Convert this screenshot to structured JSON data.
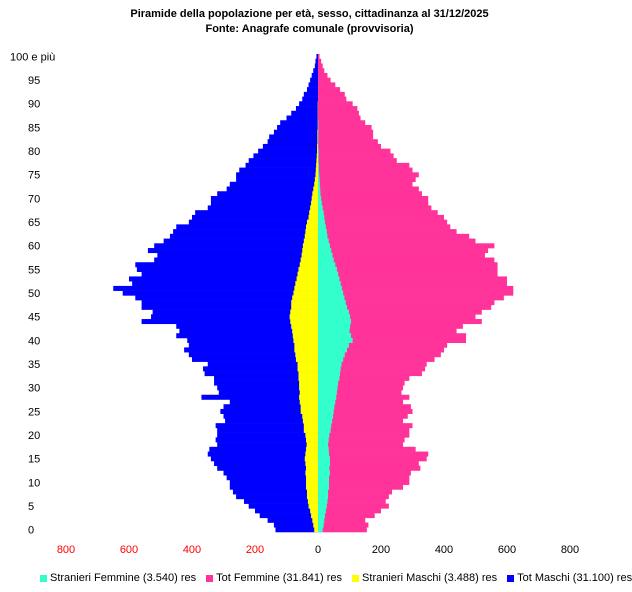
{
  "title": "Piramide della popolazione per età, sesso, cittadinanza al 31/12/2025",
  "subtitle": "Fonte: Anagrafe comunale (provvisoria)",
  "colors": {
    "tot_maschi": "#0000ff",
    "stranieri_maschi": "#ffff00",
    "tot_femmine": "#ff3399",
    "stranieri_femmine": "#33ffcc",
    "male_ticks": "#ff0000"
  },
  "legend": [
    {
      "label": "Stranieri Femmine (3.540) res",
      "color": "#33ffcc"
    },
    {
      "label": "Tot Femmine (31.841) res",
      "color": "#ff3399"
    },
    {
      "label": "Stranieri Maschi (3.488) res",
      "color": "#ffff00"
    },
    {
      "label": "Tot Maschi (31.100) res",
      "color": "#0000ff"
    }
  ],
  "chart_data": {
    "type": "bar",
    "orientation": "horizontal-pyramid",
    "title": "Piramide della popolazione per età, sesso, cittadinanza al 31/12/2025",
    "subtitle": "Fonte: Anagrafe comunale (provvisoria)",
    "y_tick_labels": [
      "0",
      "5",
      "10",
      "15",
      "20",
      "25",
      "30",
      "35",
      "40",
      "45",
      "50",
      "55",
      "60",
      "65",
      "70",
      "75",
      "80",
      "85",
      "90",
      "95",
      "100 e più"
    ],
    "x_tick_labels": [
      "800",
      "600",
      "400",
      "200",
      "0",
      "200",
      "400",
      "600",
      "800"
    ],
    "xlim": [
      -800,
      800
    ],
    "ages": [
      0,
      1,
      2,
      3,
      4,
      5,
      6,
      7,
      8,
      9,
      10,
      11,
      12,
      13,
      14,
      15,
      16,
      17,
      18,
      19,
      20,
      21,
      22,
      23,
      24,
      25,
      26,
      27,
      28,
      29,
      30,
      31,
      32,
      33,
      34,
      35,
      36,
      37,
      38,
      39,
      40,
      41,
      42,
      43,
      44,
      45,
      46,
      47,
      48,
      49,
      50,
      51,
      52,
      53,
      54,
      55,
      56,
      57,
      58,
      59,
      60,
      61,
      62,
      63,
      64,
      65,
      66,
      67,
      68,
      69,
      70,
      71,
      72,
      73,
      74,
      75,
      76,
      77,
      78,
      79,
      80,
      81,
      82,
      83,
      84,
      85,
      86,
      87,
      88,
      89,
      90,
      91,
      92,
      93,
      94,
      95,
      96,
      97,
      98,
      99,
      100
    ],
    "series": [
      {
        "name": "Tot Maschi",
        "side": "left",
        "values": [
          135,
          140,
          160,
          185,
          200,
          220,
          235,
          260,
          270,
          280,
          280,
          290,
          300,
          320,
          330,
          340,
          350,
          345,
          320,
          325,
          320,
          320,
          325,
          295,
          300,
          310,
          300,
          280,
          370,
          315,
          320,
          330,
          330,
          360,
          365,
          350,
          400,
          410,
          425,
          410,
          415,
          450,
          440,
          450,
          560,
          530,
          525,
          560,
          560,
          580,
          620,
          650,
          590,
          600,
          560,
          575,
          580,
          520,
          510,
          540,
          520,
          490,
          470,
          460,
          450,
          410,
          400,
          390,
          350,
          340,
          340,
          320,
          290,
          280,
          260,
          260,
          250,
          230,
          220,
          205,
          190,
          175,
          160,
          155,
          140,
          130,
          120,
          100,
          85,
          70,
          60,
          50,
          45,
          35,
          30,
          25,
          20,
          15,
          10,
          8,
          5
        ]
      },
      {
        "name": "Stranieri Maschi",
        "side": "left",
        "values": [
          12,
          15,
          18,
          22,
          25,
          30,
          32,
          35,
          35,
          38,
          38,
          38,
          40,
          38,
          40,
          42,
          40,
          38,
          36,
          38,
          40,
          45,
          45,
          48,
          50,
          55,
          55,
          58,
          60,
          58,
          60,
          60,
          62,
          62,
          65,
          65,
          70,
          72,
          75,
          75,
          78,
          80,
          82,
          85,
          88,
          90,
          88,
          85,
          85,
          82,
          78,
          75,
          72,
          68,
          65,
          62,
          58,
          55,
          52,
          50,
          48,
          45,
          42,
          40,
          38,
          35,
          30,
          28,
          25,
          22,
          20,
          18,
          15,
          12,
          10,
          8,
          7,
          6,
          5,
          4,
          3,
          3,
          2,
          2,
          2,
          1,
          1,
          1,
          1,
          1,
          1,
          0,
          0,
          0,
          0,
          0,
          0,
          0,
          0,
          0,
          0
        ]
      },
      {
        "name": "Tot Femmine",
        "side": "right",
        "values": [
          155,
          160,
          150,
          180,
          200,
          225,
          215,
          225,
          235,
          270,
          290,
          290,
          295,
          325,
          320,
          345,
          350,
          310,
          270,
          275,
          290,
          290,
          300,
          270,
          285,
          300,
          295,
          270,
          290,
          265,
          270,
          275,
          290,
          330,
          340,
          345,
          370,
          390,
          400,
          410,
          470,
          470,
          440,
          460,
          520,
          500,
          520,
          550,
          560,
          590,
          620,
          620,
          600,
          600,
          570,
          570,
          570,
          560,
          530,
          540,
          560,
          500,
          480,
          440,
          420,
          410,
          400,
          380,
          360,
          350,
          350,
          330,
          320,
          300,
          310,
          320,
          300,
          290,
          250,
          240,
          230,
          200,
          190,
          175,
          175,
          170,
          150,
          135,
          130,
          125,
          110,
          90,
          85,
          70,
          55,
          40,
          30,
          20,
          15,
          10,
          5
        ]
      },
      {
        "name": "Stranieri Femmine",
        "side": "right",
        "values": [
          15,
          18,
          20,
          22,
          25,
          28,
          30,
          32,
          32,
          35,
          35,
          35,
          38,
          36,
          38,
          38,
          35,
          34,
          32,
          34,
          36,
          40,
          42,
          45,
          48,
          50,
          52,
          55,
          58,
          60,
          62,
          64,
          68,
          70,
          72,
          75,
          80,
          85,
          92,
          98,
          110,
          105,
          100,
          102,
          105,
          102,
          98,
          92,
          88,
          84,
          80,
          76,
          72,
          68,
          64,
          60,
          55,
          50,
          46,
          42,
          38,
          34,
          30,
          28,
          25,
          22,
          20,
          18,
          15,
          12,
          10,
          8,
          7,
          6,
          5,
          4,
          3,
          3,
          2,
          2,
          2,
          1,
          1,
          1,
          1,
          1,
          1,
          0,
          0,
          0,
          0,
          0,
          0,
          0,
          0,
          0,
          0,
          0,
          0,
          0,
          0
        ]
      }
    ]
  }
}
